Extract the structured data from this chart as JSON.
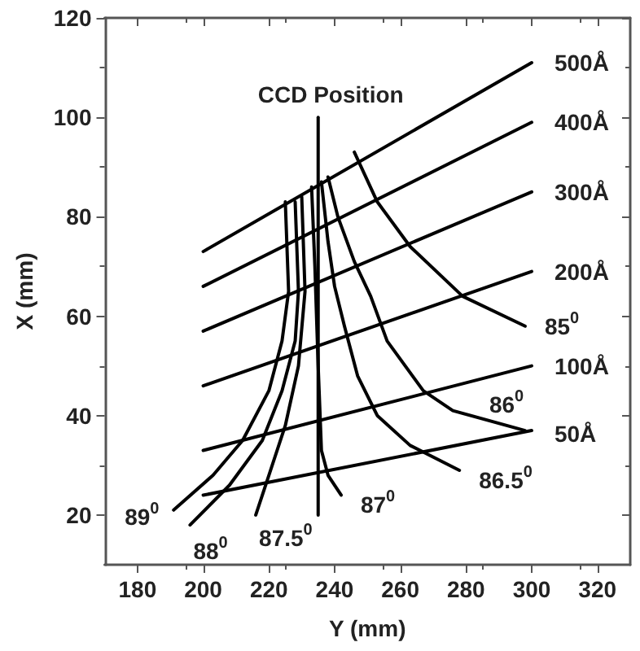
{
  "chart_data": {
    "type": "line",
    "xlabel": "Y (mm)",
    "ylabel": "X (mm)",
    "xlim": [
      170,
      330
    ],
    "xticks": [
      180,
      200,
      220,
      240,
      260,
      280,
      300,
      320
    ],
    "ylim": [
      10,
      120
    ],
    "yticks": [
      20,
      40,
      60,
      80,
      100,
      120
    ],
    "grid": false,
    "legend": false,
    "marker": "none",
    "line_style": "solid",
    "series": [
      {
        "name": "500Å",
        "color": "#000000",
        "x": [
          200,
          300
        ],
        "values": [
          73,
          111
        ]
      },
      {
        "name": "400Å",
        "color": "#000000",
        "x": [
          200,
          300
        ],
        "values": [
          66,
          99
        ]
      },
      {
        "name": "300Å",
        "color": "#000000",
        "x": [
          200,
          300
        ],
        "values": [
          57,
          85
        ]
      },
      {
        "name": "200Å",
        "color": "#000000",
        "x": [
          200,
          300
        ],
        "values": [
          46,
          69
        ]
      },
      {
        "name": "100Å",
        "color": "#000000",
        "x": [
          200,
          300
        ],
        "values": [
          33,
          50
        ]
      },
      {
        "name": "50Å",
        "color": "#000000",
        "x": [
          200,
          300
        ],
        "values": [
          24,
          37
        ]
      },
      {
        "name": "CCD Position",
        "color": "#000000",
        "x": [
          235,
          235
        ],
        "values": [
          20,
          100
        ]
      },
      {
        "name": "89$^{0}$",
        "color": "#000000",
        "x": [
          225,
          226,
          224,
          220,
          212,
          203,
          191
        ],
        "values": [
          83,
          65,
          55,
          45,
          35,
          28,
          21
        ]
      },
      {
        "name": "88$^{0}$",
        "color": "#000000",
        "x": [
          228,
          229,
          228,
          224,
          218,
          208,
          196
        ],
        "values": [
          83,
          65,
          55,
          45,
          35,
          26,
          18
        ]
      },
      {
        "name": "87.5$^{0}$",
        "color": "#000000",
        "x": [
          230,
          231,
          229,
          225,
          220,
          216
        ],
        "values": [
          84,
          65,
          50,
          38,
          28,
          20
        ]
      },
      {
        "name": "87$^{0}$",
        "color": "#000000",
        "x": [
          233,
          234,
          235,
          236,
          238,
          242
        ],
        "values": [
          86,
          70,
          50,
          33,
          28,
          24
        ]
      },
      {
        "name": "86.5$^{0}$",
        "color": "#000000",
        "x": [
          236,
          238,
          240,
          243,
          247,
          253,
          263,
          278
        ],
        "values": [
          87,
          75,
          66,
          58,
          48,
          40,
          34,
          29
        ]
      },
      {
        "name": "86$^{0}$",
        "color": "#000000",
        "x": [
          238,
          241,
          246,
          251,
          256,
          267,
          276,
          298
        ],
        "values": [
          88,
          80,
          71,
          64,
          55,
          45,
          41,
          37
        ]
      },
      {
        "name": "85$^{0}$",
        "color": "#000000",
        "x": [
          246,
          253,
          263,
          279,
          298
        ],
        "values": [
          93,
          83,
          74,
          64,
          58
        ]
      }
    ]
  }
}
